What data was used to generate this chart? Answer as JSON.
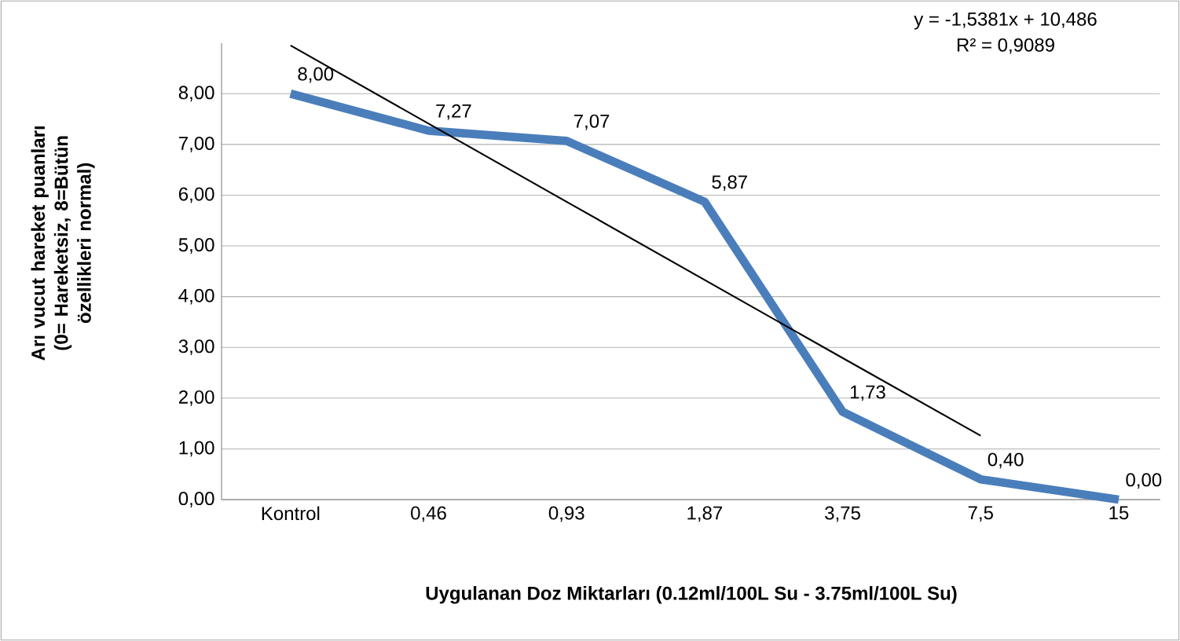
{
  "chart_data": {
    "type": "line",
    "xlabel": "Uygulanan Doz Miktarları (0.12ml/100L Su - 3.75ml/100L Su)",
    "ylabel": "Arı vucut hareket puanları (0= Hareketsiz, 8=Bütün özellikleri normal)",
    "categories": [
      "Kontrol",
      "0,46",
      "0,93",
      "1,87",
      "3,75",
      "7,5",
      "15"
    ],
    "series": [
      {
        "color": "#4a7ebb",
        "values": [
          8.0,
          7.27,
          7.07,
          5.87,
          1.73,
          0.4,
          0.0
        ],
        "value_labels": [
          "8,00",
          "7,27",
          "7,07",
          "5,87",
          "1,73",
          "0,40",
          "0,00"
        ]
      },
      {
        "type": "line",
        "color": "#000000",
        "values": [
          8.95,
          7.41,
          5.87,
          4.33,
          2.79,
          1.26,
          null
        ]
      }
    ],
    "ylim": [
      0,
      9
    ],
    "yticks": [
      {
        "value": 0,
        "label": "0,00"
      },
      {
        "value": 1,
        "label": "1,00"
      },
      {
        "value": 2,
        "label": "2,00"
      },
      {
        "value": 3,
        "label": "3,00"
      },
      {
        "value": 4,
        "label": "4,00"
      },
      {
        "value": 5,
        "label": "5,00"
      },
      {
        "value": 6,
        "label": "6,00"
      },
      {
        "value": 7,
        "label": "7,00"
      },
      {
        "value": 8,
        "label": "8,00"
      },
      {
        "value": null,
        "label": null
      }
    ],
    "grid": "y",
    "annotations": [
      "y = -1,5381x + 10,486",
      "R² = 0,9089"
    ]
  }
}
